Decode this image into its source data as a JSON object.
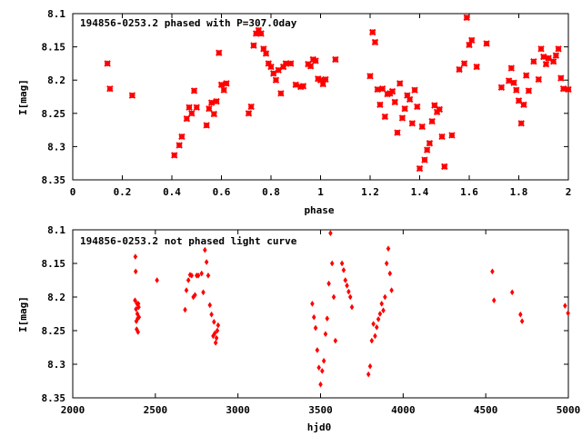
{
  "chart_data": [
    {
      "type": "scatter",
      "title": "194856-0253.2 phased with P=307.0day",
      "xlabel": "phase",
      "ylabel": "I[mag]",
      "xlim": [
        0,
        2
      ],
      "ylim": [
        8.35,
        8.1
      ],
      "y_inverted": true,
      "x_ticks": [
        0,
        0.2,
        0.4,
        0.6,
        0.8,
        1,
        1.2,
        1.4,
        1.6,
        1.8,
        2
      ],
      "y_ticks": [
        8.1,
        8.15,
        8.2,
        8.25,
        8.3,
        8.35
      ],
      "marker": "cross",
      "marker_color": "#ff0000",
      "grid": false,
      "series": [
        {
          "x": [
            0.14,
            0.15,
            0.24,
            0.41,
            0.43,
            0.44,
            0.46,
            0.47,
            0.48,
            0.49,
            0.5,
            0.54,
            0.55,
            0.56,
            0.57,
            0.58,
            0.59,
            0.6,
            0.61,
            0.62,
            0.71,
            0.72,
            0.73,
            0.74,
            0.75,
            0.76,
            0.77,
            0.78,
            0.79,
            0.8,
            0.81,
            0.82,
            0.83,
            0.84,
            0.85,
            0.86,
            0.88,
            0.9,
            0.92,
            0.93,
            0.95,
            0.96,
            0.97,
            0.98,
            0.99,
            1.0,
            1.01,
            1.02,
            1.06,
            1.2,
            1.21,
            1.22,
            1.23,
            1.24,
            1.25,
            1.26,
            1.27,
            1.28,
            1.29,
            1.3,
            1.31,
            1.32,
            1.33,
            1.34,
            1.35,
            1.36,
            1.37,
            1.38,
            1.39,
            1.4,
            1.41,
            1.42,
            1.43,
            1.44,
            1.45,
            1.46,
            1.47,
            1.48,
            1.49,
            1.5,
            1.53,
            1.56,
            1.58,
            1.59,
            1.6,
            1.61,
            1.63,
            1.67,
            1.73,
            1.76,
            1.77,
            1.78,
            1.79,
            1.8,
            1.81,
            1.82,
            1.83,
            1.84,
            1.86,
            1.88,
            1.89,
            1.9,
            1.91,
            1.92,
            1.94,
            1.95,
            1.96,
            1.97,
            1.98,
            2.0
          ],
          "y": [
            8.175,
            8.213,
            8.223,
            8.313,
            8.298,
            8.285,
            8.258,
            8.241,
            8.25,
            8.216,
            8.241,
            8.268,
            8.243,
            8.234,
            8.251,
            8.232,
            8.159,
            8.207,
            8.215,
            8.205,
            8.25,
            8.24,
            8.148,
            8.13,
            8.125,
            8.13,
            8.153,
            8.16,
            8.175,
            8.18,
            8.19,
            8.2,
            8.185,
            8.22,
            8.18,
            8.175,
            8.175,
            8.207,
            8.21,
            8.209,
            8.176,
            8.179,
            8.169,
            8.171,
            8.198,
            8.2,
            8.206,
            8.199,
            8.169,
            8.194,
            8.128,
            8.143,
            8.214,
            8.237,
            8.213,
            8.255,
            8.221,
            8.22,
            8.217,
            8.233,
            8.279,
            8.205,
            8.257,
            8.243,
            8.223,
            8.229,
            8.265,
            8.215,
            8.24,
            8.333,
            8.27,
            8.32,
            8.305,
            8.295,
            8.262,
            8.238,
            8.248,
            8.244,
            8.285,
            8.33,
            8.283,
            8.184,
            8.175,
            8.106,
            8.147,
            8.14,
            8.18,
            8.145,
            8.211,
            8.201,
            8.182,
            8.204,
            8.215,
            8.231,
            8.265,
            8.237,
            8.193,
            8.216,
            8.172,
            8.199,
            8.153,
            8.165,
            8.176,
            8.167,
            8.172,
            8.163,
            8.153,
            8.197,
            8.213,
            8.214
          ]
        }
      ]
    },
    {
      "type": "scatter",
      "title": "194856-0253.2 not phased light curve",
      "xlabel": "hjd0",
      "ylabel": "I[mag]",
      "xlim": [
        2000,
        5000
      ],
      "ylim": [
        8.35,
        8.1
      ],
      "y_inverted": true,
      "x_ticks": [
        2000,
        2500,
        3000,
        3500,
        4000,
        4500,
        5000
      ],
      "y_ticks": [
        8.1,
        8.15,
        8.2,
        8.25,
        8.3,
        8.35
      ],
      "marker": "diamond",
      "marker_color": "#ff0000",
      "grid": false,
      "series": [
        {
          "x": [
            2377,
            2379,
            2381,
            2383,
            2385,
            2387,
            2389,
            2391,
            2393,
            2395,
            2397,
            2399,
            2401,
            2510,
            2680,
            2688,
            2700,
            2710,
            2720,
            2730,
            2740,
            2750,
            2760,
            2780,
            2790,
            2800,
            2810,
            2820,
            2830,
            2840,
            2850,
            2855,
            2860,
            2865,
            2870,
            2875,
            2880,
            3450,
            3460,
            3470,
            3480,
            3490,
            3500,
            3510,
            3520,
            3530,
            3540,
            3550,
            3560,
            3570,
            3580,
            3590,
            3630,
            3640,
            3650,
            3660,
            3670,
            3680,
            3690,
            3790,
            3800,
            3810,
            3820,
            3830,
            3840,
            3850,
            3860,
            3870,
            3880,
            3890,
            3900,
            3910,
            3920,
            3930,
            4540,
            4550,
            4660,
            4710,
            4720,
            4980,
            4998
          ],
          "y": [
            8.205,
            8.14,
            8.162,
            8.218,
            8.236,
            8.248,
            8.21,
            8.225,
            8.232,
            8.252,
            8.21,
            8.215,
            8.23,
            8.175,
            8.219,
            8.19,
            8.175,
            8.167,
            8.168,
            8.2,
            8.197,
            8.168,
            8.168,
            8.165,
            8.193,
            8.13,
            8.148,
            8.168,
            8.212,
            8.226,
            8.258,
            8.237,
            8.254,
            8.268,
            8.261,
            8.25,
            8.242,
            8.21,
            8.23,
            8.246,
            8.279,
            8.305,
            8.33,
            8.31,
            8.295,
            8.255,
            8.232,
            8.18,
            8.105,
            8.15,
            8.2,
            8.265,
            8.15,
            8.16,
            8.175,
            8.183,
            8.192,
            8.2,
            8.215,
            8.315,
            8.303,
            8.265,
            8.24,
            8.258,
            8.245,
            8.233,
            8.225,
            8.21,
            8.22,
            8.2,
            8.15,
            8.128,
            8.165,
            8.19,
            8.162,
            8.205,
            8.193,
            8.226,
            8.236,
            8.213,
            8.224
          ]
        }
      ]
    }
  ]
}
